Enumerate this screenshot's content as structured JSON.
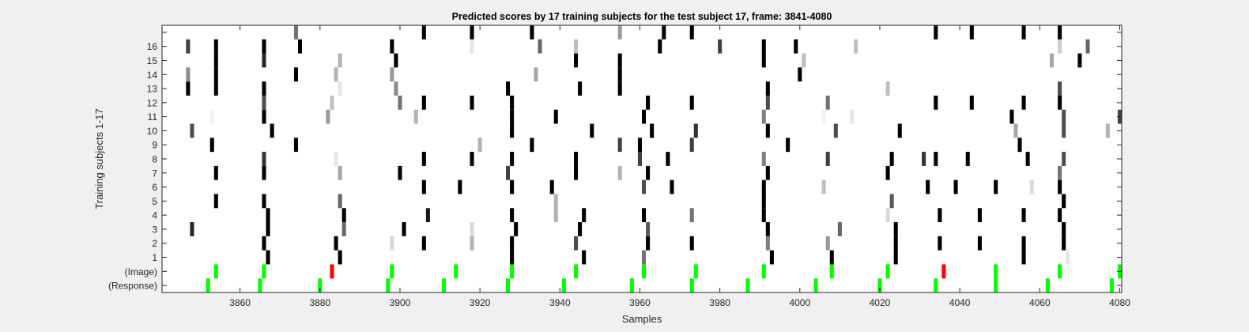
{
  "chart_data": {
    "type": "heatmap",
    "title": "Predicted scores by 17 training subjects for the test subject 17, frame: 3841-4080",
    "xlabel": "Samples",
    "ylabel": "Training subjects 1-17",
    "xlim": [
      3841,
      4080
    ],
    "x_ticks": [
      3860,
      3880,
      3900,
      3920,
      3940,
      3960,
      3980,
      4000,
      4020,
      4040,
      4060,
      4080
    ],
    "row_labels": [
      "(Response)",
      "(Image)",
      "1",
      "2",
      "3",
      "4",
      "5",
      "6",
      "7",
      "8",
      "9",
      "10",
      "11",
      "12",
      "13",
      "14",
      "15",
      "16",
      ""
    ],
    "grid": false,
    "colors": {
      "green": "#00ff00",
      "red": "#ff0000",
      "background": "#f0f0f0",
      "axes": "#ffffff"
    },
    "value_encoding": "grayscale intensity, 1 = black, 0 = white",
    "rows": [
      {
        "label": "(Response)",
        "marks": [
          {
            "x": 3852,
            "color": "green"
          },
          {
            "x": 3865,
            "color": "green"
          },
          {
            "x": 3880,
            "color": "green"
          },
          {
            "x": 3897,
            "color": "green"
          },
          {
            "x": 3911,
            "color": "green"
          },
          {
            "x": 3927,
            "color": "green"
          },
          {
            "x": 3941,
            "color": "green"
          },
          {
            "x": 3958,
            "color": "green"
          },
          {
            "x": 3973,
            "color": "green"
          },
          {
            "x": 3987,
            "color": "green"
          },
          {
            "x": 4004,
            "color": "green"
          },
          {
            "x": 4020,
            "color": "green"
          },
          {
            "x": 4034,
            "color": "green"
          },
          {
            "x": 4049,
            "color": "green"
          },
          {
            "x": 4062,
            "color": "green"
          },
          {
            "x": 4078,
            "color": "green"
          }
        ]
      },
      {
        "label": "(Image)",
        "marks": [
          {
            "x": 3854,
            "color": "green"
          },
          {
            "x": 3866,
            "color": "green"
          },
          {
            "x": 3883,
            "color": "red"
          },
          {
            "x": 3898,
            "color": "green"
          },
          {
            "x": 3914,
            "color": "green"
          },
          {
            "x": 3928,
            "color": "green"
          },
          {
            "x": 3944,
            "color": "green"
          },
          {
            "x": 3961,
            "color": "green"
          },
          {
            "x": 3974,
            "color": "green"
          },
          {
            "x": 3991,
            "color": "green"
          },
          {
            "x": 4008,
            "color": "green"
          },
          {
            "x": 4022,
            "color": "green"
          },
          {
            "x": 4036,
            "color": "red"
          },
          {
            "x": 4049,
            "color": "green"
          },
          {
            "x": 4065,
            "color": "green"
          },
          {
            "x": 4080,
            "color": "green"
          }
        ]
      },
      {
        "label": "1",
        "cells": [
          [
            3867,
            1
          ],
          [
            3885,
            1
          ],
          [
            3928,
            1
          ],
          [
            3946,
            1
          ],
          [
            3961,
            0.55
          ],
          [
            3993,
            1
          ],
          [
            4008,
            1
          ],
          [
            4024,
            1
          ],
          [
            4056,
            1
          ],
          [
            4067,
            0.1
          ]
        ]
      },
      {
        "label": "2",
        "cells": [
          [
            3866,
            1
          ],
          [
            3884,
            1
          ],
          [
            3898,
            0.15
          ],
          [
            3906,
            1
          ],
          [
            3918,
            0.3
          ],
          [
            3928,
            1
          ],
          [
            3944,
            0.7
          ],
          [
            3962,
            1
          ],
          [
            3973,
            1
          ],
          [
            3992,
            0.5
          ],
          [
            4007,
            0.4
          ],
          [
            4024,
            1
          ],
          [
            4035,
            1
          ],
          [
            4045,
            1
          ],
          [
            4056,
            1
          ],
          [
            4066,
            1
          ]
        ]
      },
      {
        "label": "3",
        "cells": [
          [
            3848,
            0.85
          ],
          [
            3867,
            1
          ],
          [
            3886,
            0.6
          ],
          [
            3901,
            1
          ],
          [
            3918,
            0.15
          ],
          [
            3929,
            1
          ],
          [
            3945,
            1
          ],
          [
            3962,
            0.65
          ],
          [
            3992,
            1
          ],
          [
            4010,
            0.6
          ],
          [
            4024,
            1
          ],
          [
            4066,
            1
          ]
        ]
      },
      {
        "label": "4",
        "cells": [
          [
            3867,
            1
          ],
          [
            3886,
            1
          ],
          [
            3907,
            0.9
          ],
          [
            3928,
            1
          ],
          [
            3939,
            0.3
          ],
          [
            3946,
            1
          ],
          [
            3961,
            1
          ],
          [
            3973,
            0.55
          ],
          [
            3991,
            1
          ],
          [
            4022,
            0.15
          ],
          [
            4035,
            1
          ],
          [
            4045,
            1
          ],
          [
            4056,
            1
          ],
          [
            4065,
            1
          ]
        ]
      },
      {
        "label": "5",
        "cells": [
          [
            3854,
            1
          ],
          [
            3866,
            1
          ],
          [
            3885,
            0.6
          ],
          [
            3939,
            0.3
          ],
          [
            3991,
            1
          ],
          [
            4023,
            0.65
          ],
          [
            4066,
            1
          ]
        ]
      },
      {
        "label": "6",
        "cells": [
          [
            3906,
            1
          ],
          [
            3915,
            1
          ],
          [
            3928,
            1
          ],
          [
            3938,
            1
          ],
          [
            3961,
            0.7
          ],
          [
            3968,
            1
          ],
          [
            3991,
            1
          ],
          [
            4006,
            0.25
          ],
          [
            4032,
            1
          ],
          [
            4039,
            1
          ],
          [
            4049,
            1
          ],
          [
            4058,
            0.15
          ],
          [
            4065,
            1
          ]
        ]
      },
      {
        "label": "7",
        "cells": [
          [
            3854,
            1
          ],
          [
            3866,
            1
          ],
          [
            3885,
            0.35
          ],
          [
            3900,
            1
          ],
          [
            3927,
            0.75
          ],
          [
            3944,
            1
          ],
          [
            3955,
            0.3
          ],
          [
            3962,
            1
          ],
          [
            3992,
            1
          ],
          [
            4022,
            1
          ],
          [
            4065,
            0.55
          ]
        ]
      },
      {
        "label": "8",
        "cells": [
          [
            3866,
            0.8
          ],
          [
            3884,
            0.1
          ],
          [
            3906,
            1
          ],
          [
            3918,
            1
          ],
          [
            3928,
            1
          ],
          [
            3944,
            1
          ],
          [
            3960,
            0.75
          ],
          [
            3967,
            1
          ],
          [
            3991,
            0.5
          ],
          [
            4007,
            0.75
          ],
          [
            4023,
            1
          ],
          [
            4031,
            0.8
          ],
          [
            4034,
            1
          ],
          [
            4042,
            1
          ],
          [
            4057,
            1
          ],
          [
            4066,
            0.7
          ]
        ]
      },
      {
        "label": "9",
        "cells": [
          [
            3853,
            1
          ],
          [
            3874,
            1
          ],
          [
            3920,
            0.3
          ],
          [
            3933,
            1
          ],
          [
            3955,
            0.75
          ],
          [
            3960,
            1
          ],
          [
            3973,
            0.75
          ],
          [
            3997,
            1
          ],
          [
            4055,
            1
          ]
        ]
      },
      {
        "label": "10",
        "cells": [
          [
            3848,
            0.7
          ],
          [
            3868,
            1
          ],
          [
            3928,
            1
          ],
          [
            3948,
            1
          ],
          [
            3963,
            1
          ],
          [
            3974,
            0.8
          ],
          [
            3992,
            1
          ],
          [
            4009,
            0.7
          ],
          [
            4025,
            1
          ],
          [
            4054,
            0.35
          ],
          [
            4066,
            0.7
          ],
          [
            4077,
            0.3
          ]
        ]
      },
      {
        "label": "11",
        "cells": [
          [
            3853,
            0.05
          ],
          [
            3866,
            1
          ],
          [
            3882,
            0.4
          ],
          [
            3904,
            0.3
          ],
          [
            3928,
            1
          ],
          [
            3939,
            1
          ],
          [
            3961,
            1
          ],
          [
            3991,
            0.5
          ],
          [
            4006,
            0.05
          ],
          [
            4013,
            0.1
          ],
          [
            4053,
            1
          ],
          [
            4066,
            0.7
          ],
          [
            4080,
            0.75
          ]
        ]
      },
      {
        "label": "12",
        "cells": [
          [
            3866,
            0.7
          ],
          [
            3883,
            0.25
          ],
          [
            3900,
            0.55
          ],
          [
            3906,
            1
          ],
          [
            3918,
            1
          ],
          [
            3928,
            1
          ],
          [
            3962,
            1
          ],
          [
            3973,
            1
          ],
          [
            3992,
            0.7
          ],
          [
            4007,
            0.55
          ],
          [
            4034,
            1
          ],
          [
            4043,
            1
          ],
          [
            4056,
            1
          ],
          [
            4065,
            1
          ]
        ]
      },
      {
        "label": "13",
        "cells": [
          [
            3847,
            1
          ],
          [
            3854,
            1
          ],
          [
            3866,
            1
          ],
          [
            3885,
            0.1
          ],
          [
            3899,
            0.45
          ],
          [
            3927,
            1
          ],
          [
            3945,
            1
          ],
          [
            3955,
            1
          ],
          [
            3992,
            1
          ],
          [
            4022,
            0.25
          ],
          [
            4065,
            0.7
          ]
        ]
      },
      {
        "label": "14",
        "cells": [
          [
            3847,
            0.45
          ],
          [
            3854,
            1
          ],
          [
            3874,
            1
          ],
          [
            3884,
            0.3
          ],
          [
            3898,
            0.4
          ],
          [
            3934,
            0.35
          ],
          [
            3955,
            1
          ],
          [
            4000,
            1
          ]
        ]
      },
      {
        "label": "15",
        "cells": [
          [
            3854,
            1
          ],
          [
            3866,
            0.85
          ],
          [
            3885,
            0.3
          ],
          [
            3899,
            1
          ],
          [
            3944,
            1
          ],
          [
            3955,
            1
          ],
          [
            3991,
            1
          ],
          [
            4001,
            0.25
          ],
          [
            4063,
            0.35
          ],
          [
            4070,
            1
          ]
        ]
      },
      {
        "label": "16",
        "cells": [
          [
            3847,
            0.75
          ],
          [
            3854,
            1
          ],
          [
            3866,
            1
          ],
          [
            3875,
            1
          ],
          [
            3898,
            1
          ],
          [
            3918,
            0.1
          ],
          [
            3935,
            0.6
          ],
          [
            3944,
            0.25
          ],
          [
            3965,
            1
          ],
          [
            3980,
            0.75
          ],
          [
            3991,
            1
          ],
          [
            3999,
            1
          ],
          [
            4014,
            0.25
          ],
          [
            4065,
            0.2
          ],
          [
            4072,
            0.6
          ]
        ]
      },
      {
        "label": "",
        "cells": [
          [
            3874,
            0.55
          ],
          [
            3906,
            1
          ],
          [
            3918,
            1
          ],
          [
            3933,
            1
          ],
          [
            3955,
            0.4
          ],
          [
            3966,
            1
          ],
          [
            3973,
            1
          ],
          [
            4034,
            1
          ],
          [
            4043,
            1
          ],
          [
            4056,
            1
          ],
          [
            4065,
            1
          ]
        ]
      }
    ]
  }
}
